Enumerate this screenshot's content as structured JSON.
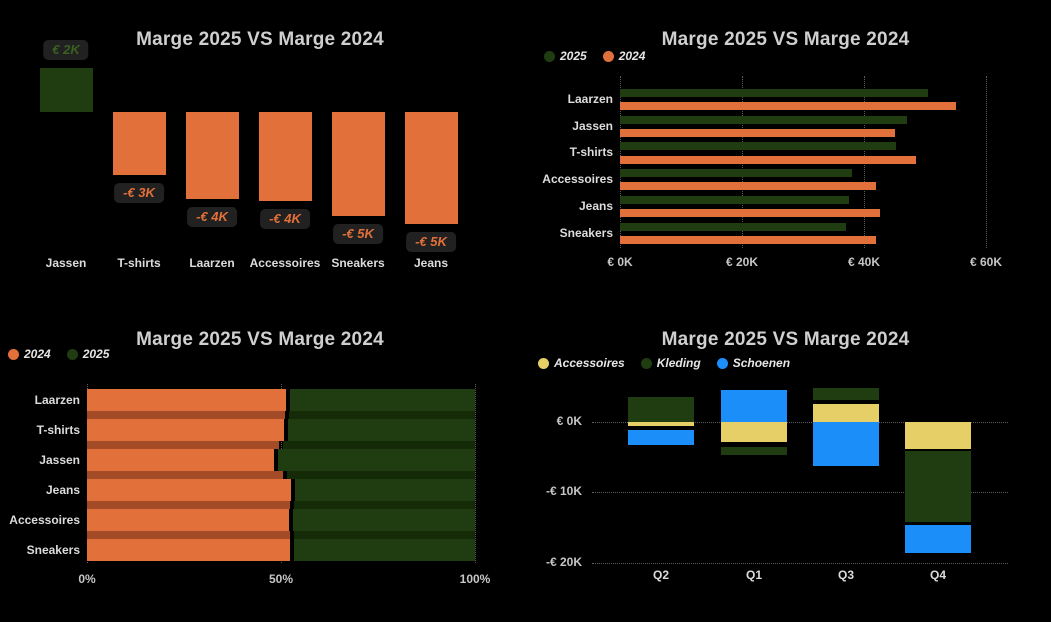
{
  "colors": {
    "background": "#000000",
    "orange": "#E2703A",
    "orange_dim": "#A34A26",
    "green": "#1F3D10",
    "green_dim": "#152B08",
    "green_label": "#3A6120",
    "yellow": "#E5CF66",
    "blue": "#1B8EF9",
    "title_text": "#CFCFCF",
    "legend_text": "#E6E6E6",
    "category_text": "#DCDCDC",
    "tick_text": "#C6C6C6",
    "callout_bg": "#212121"
  },
  "chart_data": [
    {
      "type": "bar",
      "title": "Marge 2025 VS Marge 2024",
      "unit": "€K",
      "categories": [
        "Jassen",
        "T-shirts",
        "Laarzen",
        "Accessoires",
        "Sneakers",
        "Jeans"
      ],
      "values": [
        2.0,
        -2.9,
        -4.0,
        -4.1,
        -4.75,
        -5.15
      ],
      "data_labels": [
        "€ 2K",
        "-€ 3K",
        "-€ 4K",
        "-€ 4K",
        "-€ 5K",
        "-€ 5K"
      ],
      "positive_color_key": "green",
      "negative_color_key": "orange",
      "grid": false,
      "legend_position": "none"
    },
    {
      "type": "bar",
      "orientation": "horizontal",
      "grouped": true,
      "title": "Marge 2025 VS Marge 2024",
      "unit": "€K",
      "legend_position": "top-left",
      "legend": [
        {
          "label": "2025",
          "color_key": "green"
        },
        {
          "label": "2024",
          "color_key": "orange"
        }
      ],
      "categories": [
        "Laarzen",
        "Jassen",
        "T-shirts",
        "Accessoires",
        "Jeans",
        "Sneakers"
      ],
      "series": [
        {
          "name": "2025",
          "color_key": "green",
          "values": [
            50.5,
            47.0,
            45.3,
            38.0,
            37.5,
            37.0
          ]
        },
        {
          "name": "2024",
          "color_key": "orange",
          "values": [
            55.0,
            45.0,
            48.5,
            42.0,
            42.7,
            42.0
          ]
        }
      ],
      "x_ticks": [
        {
          "label": "€ 0K",
          "value": 0
        },
        {
          "label": "€ 20K",
          "value": 20
        },
        {
          "label": "€ 40K",
          "value": 40
        },
        {
          "label": "€ 60K",
          "value": 60
        }
      ],
      "xlim": [
        0,
        60
      ],
      "grid": true
    },
    {
      "type": "bar",
      "orientation": "horizontal",
      "stacked_100pct": true,
      "title": "Marge 2025 VS Marge 2024",
      "unit": "%",
      "legend_position": "top-left",
      "legend": [
        {
          "label": "2024",
          "color_key": "orange"
        },
        {
          "label": "2025",
          "color_key": "green"
        }
      ],
      "categories": [
        "Laarzen",
        "T-shirts",
        "Jassen",
        "Jeans",
        "Accessoires",
        "Sneakers"
      ],
      "series": [
        {
          "name": "2024",
          "color_key": "orange",
          "values": [
            51.7,
            51.3,
            48.8,
            53.1,
            52.6,
            52.9
          ]
        },
        {
          "name": "2025",
          "color_key": "green",
          "values": [
            48.3,
            48.7,
            51.2,
            46.9,
            47.4,
            47.1
          ]
        }
      ],
      "x_ticks": [
        {
          "label": "0%",
          "value": 0
        },
        {
          "label": "50%",
          "value": 50
        },
        {
          "label": "100%",
          "value": 100
        }
      ],
      "xlim": [
        0,
        100
      ],
      "grid": true
    },
    {
      "type": "bar",
      "stacked": true,
      "title": "Marge 2025 VS Marge 2024",
      "unit": "€K",
      "legend_position": "top-left",
      "legend": [
        {
          "label": "Accessoires",
          "color_key": "yellow"
        },
        {
          "label": "Kleding",
          "color_key": "green"
        },
        {
          "label": "Schoenen",
          "color_key": "blue"
        }
      ],
      "categories": [
        "Q2",
        "Q1",
        "Q3",
        "Q4"
      ],
      "segments": [
        [
          {
            "series": "Kleding",
            "color_key": "green",
            "from": 0,
            "to": 3.6
          },
          {
            "series": "Accessoires",
            "color_key": "yellow",
            "from": 0,
            "to": -0.6
          },
          {
            "series": "Schoenen",
            "color_key": "blue",
            "from": -1.2,
            "to": -3.3
          }
        ],
        [
          {
            "series": "Schoenen",
            "color_key": "blue",
            "from": 0,
            "to": 4.6
          },
          {
            "series": "Accessoires",
            "color_key": "yellow",
            "from": 0,
            "to": -2.9
          },
          {
            "series": "Kleding",
            "color_key": "green",
            "from": -3.6,
            "to": -4.7
          }
        ],
        [
          {
            "series": "Accessoires",
            "color_key": "yellow",
            "from": 0,
            "to": 2.5
          },
          {
            "series": "Kleding",
            "color_key": "green",
            "from": 3.1,
            "to": 4.8
          },
          {
            "series": "Schoenen",
            "color_key": "blue",
            "from": 0,
            "to": -6.3
          }
        ],
        [
          {
            "series": "Accessoires",
            "color_key": "yellow",
            "from": 0,
            "to": -3.8
          },
          {
            "series": "Kleding",
            "color_key": "green",
            "from": -4.1,
            "to": -14.2
          },
          {
            "series": "Schoenen",
            "color_key": "blue",
            "from": -14.7,
            "to": -18.6
          }
        ]
      ],
      "y_ticks": [
        {
          "label": "€ 0K",
          "value": 0
        },
        {
          "label": "-€ 10K",
          "value": -10
        },
        {
          "label": "-€ 20K",
          "value": -20
        }
      ],
      "ylim": [
        -20.5,
        5.2
      ],
      "grid": true
    }
  ]
}
